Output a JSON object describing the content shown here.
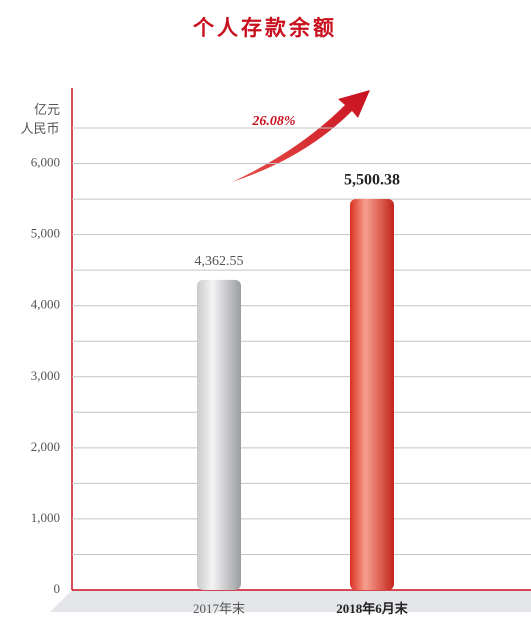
{
  "chart_data": {
    "type": "bar",
    "title": "个人存款余额",
    "y_label": [
      "亿元",
      "人民币"
    ],
    "categories": [
      "2017年末",
      "2018年6月末"
    ],
    "values": [
      4362.55,
      5500.38
    ],
    "value_labels": [
      "4,362.55",
      "5,500.38"
    ],
    "colors": [
      "#b8b9bb",
      "#e2402f"
    ],
    "annotation": "26.08%",
    "ylim": [
      0,
      6500
    ],
    "yticks": [
      0,
      {
        "value": 1000,
        "label": "1,000"
      },
      {
        "value": 2000,
        "label": "2,000"
      },
      {
        "value": 3000,
        "label": "3,000"
      },
      {
        "value": 4000,
        "label": "4,000"
      },
      {
        "value": 5000,
        "label": "5,000"
      },
      {
        "value": 6000,
        "label": "6,000"
      }
    ],
    "minor_yticks": [
      500,
      1500,
      2500,
      3500,
      4500,
      5500,
      6500
    ],
    "grid": true
  }
}
